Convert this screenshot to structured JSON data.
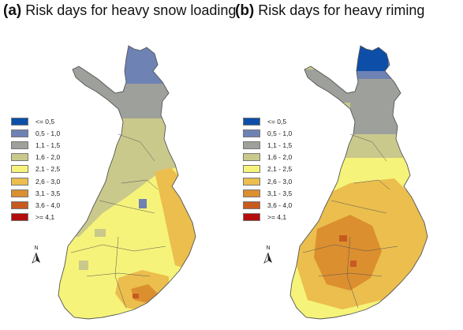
{
  "panels": [
    {
      "label": "(a)",
      "title": "Risk days for heavy snow loading"
    },
    {
      "label": "(b)",
      "title": "Risk days for heavy riming"
    }
  ],
  "legend": [
    {
      "label": "<= 0,5",
      "color": "#0c4ea8"
    },
    {
      "label": "0,5 - 1,0",
      "color": "#6e82b4"
    },
    {
      "label": "1,1 - 1,5",
      "color": "#9ea09b"
    },
    {
      "label": "1,6 - 2,0",
      "color": "#c9c98c"
    },
    {
      "label": "2,1 - 2,5",
      "color": "#f6f37a"
    },
    {
      "label": "2,6 - 3,0",
      "color": "#ebbe4e"
    },
    {
      "label": "3,1 - 3,5",
      "color": "#dc8f2f"
    },
    {
      "label": "3,6 - 4,0",
      "color": "#c65a1f"
    },
    {
      "label": ">= 4,1",
      "color": "#b40d0d"
    }
  ],
  "north_label": "N",
  "colors": {
    "border": "#555555",
    "sea": "#ffffff"
  }
}
